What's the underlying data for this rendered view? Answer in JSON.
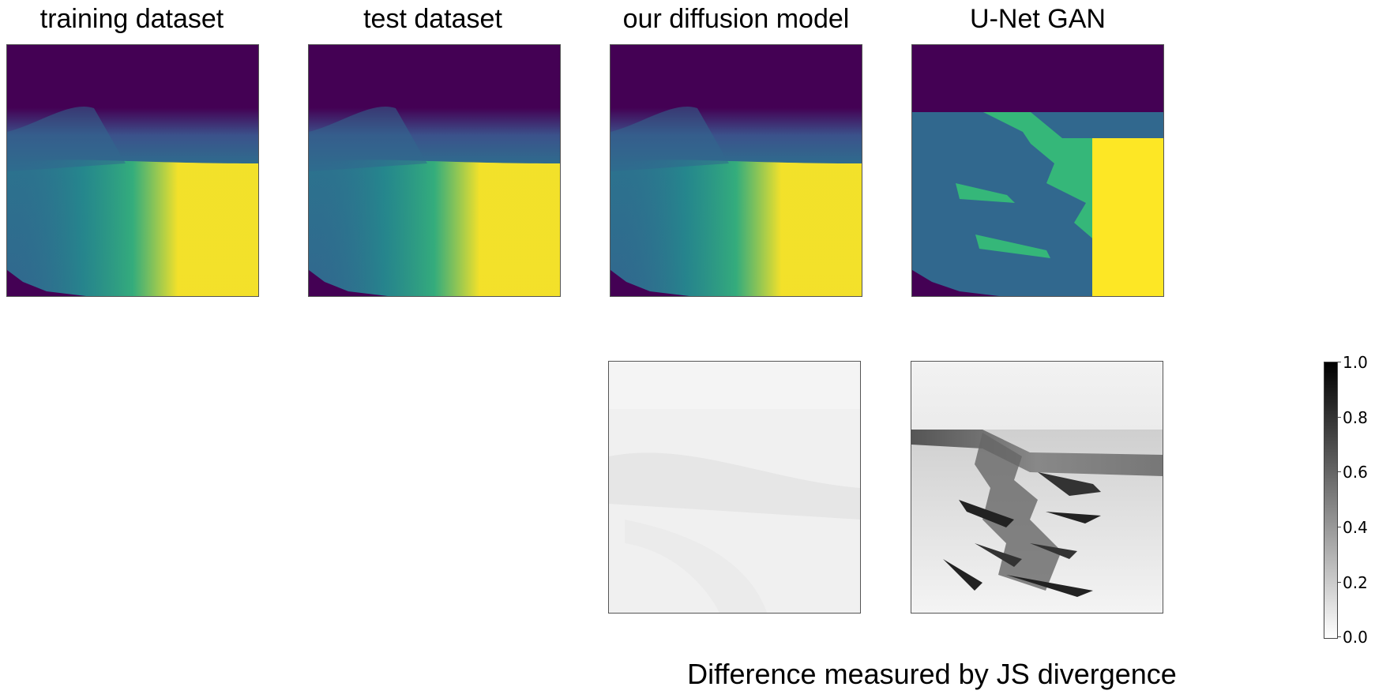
{
  "titles": {
    "training": "training dataset",
    "test": "test dataset",
    "diffusion": "our diffusion model",
    "gan": "U-Net GAN"
  },
  "caption": "Difference measured by JS divergence",
  "colorbar": {
    "range": [
      0.0,
      1.0
    ],
    "ticks": [
      "1.0",
      "0.8",
      "0.6",
      "0.4",
      "0.2",
      "0.0"
    ],
    "colormap": "gray_r"
  },
  "colors": {
    "viridis_dark": "#440154",
    "viridis_blue": "#31688e",
    "viridis_teal": "#21918c",
    "viridis_green": "#35b779",
    "viridis_yellow": "#fde725"
  },
  "chart_data": [
    {
      "type": "heatmap",
      "title": "training dataset",
      "colormap": "viridis"
    },
    {
      "type": "heatmap",
      "title": "test dataset",
      "colormap": "viridis"
    },
    {
      "type": "heatmap",
      "title": "our diffusion model",
      "colormap": "viridis"
    },
    {
      "type": "heatmap",
      "title": "U-Net GAN",
      "colormap": "viridis"
    },
    {
      "type": "heatmap",
      "title": "",
      "colormap": "gray_r",
      "zlim": [
        0.0,
        1.0
      ]
    },
    {
      "type": "heatmap",
      "title": "",
      "colormap": "gray_r",
      "zlim": [
        0.0,
        1.0
      ]
    }
  ]
}
